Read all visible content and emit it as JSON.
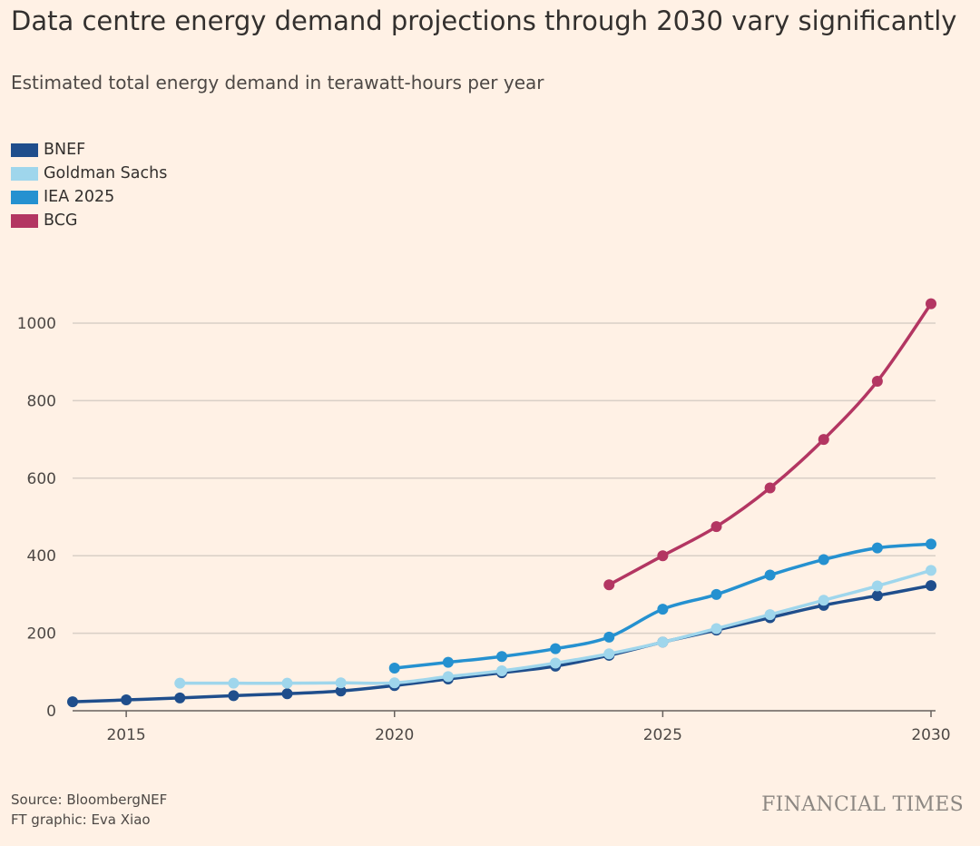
{
  "chart_data": {
    "type": "line",
    "title": "Data centre energy demand projections through 2030 vary significantly",
    "subtitle": "Estimated total energy demand in terawatt-hours per year",
    "xlabel": "",
    "ylabel": "",
    "xlim": [
      2014,
      2030
    ],
    "ylim": [
      0,
      1100
    ],
    "x_ticks": [
      "2015",
      "2020",
      "2025",
      "2030"
    ],
    "y_ticks": [
      "0",
      "200",
      "400",
      "600",
      "800",
      "1000"
    ],
    "grid": "horizontal",
    "legend_position": "top-left",
    "series": [
      {
        "name": "BNEF",
        "color": "#1f4e8c",
        "x": [
          2014,
          2015,
          2016,
          2017,
          2018,
          2019,
          2020,
          2021,
          2022,
          2023,
          2024,
          2025,
          2026,
          2027,
          2028,
          2029,
          2030
        ],
        "values": [
          23,
          28,
          33,
          39,
          44,
          51,
          65,
          82,
          98,
          115,
          143,
          177,
          208,
          240,
          272,
          297,
          323
        ]
      },
      {
        "name": "Goldman Sachs",
        "color": "#9fd6ec",
        "x": [
          2016,
          2017,
          2018,
          2019,
          2020,
          2021,
          2022,
          2023,
          2024,
          2025,
          2026,
          2027,
          2028,
          2029,
          2030
        ],
        "values": [
          71,
          71,
          71,
          72,
          72,
          88,
          103,
          123,
          147,
          177,
          212,
          248,
          285,
          322,
          362
        ]
      },
      {
        "name": "IEA 2025",
        "color": "#2591d0",
        "x": [
          2020,
          2021,
          2022,
          2023,
          2024,
          2025,
          2026,
          2027,
          2028,
          2029,
          2030
        ],
        "values": [
          110,
          125,
          140,
          160,
          190,
          262,
          300,
          350,
          390,
          420,
          430
        ]
      },
      {
        "name": "BCG",
        "color": "#b33662",
        "x": [
          2024,
          2025,
          2026,
          2027,
          2028,
          2029,
          2030
        ],
        "values": [
          325,
          400,
          475,
          575,
          700,
          850,
          1050
        ]
      }
    ]
  },
  "footer": {
    "source": "Source: BloombergNEF",
    "credit": "FT graphic: Eva Xiao",
    "brand": "FINANCIAL TIMES"
  }
}
